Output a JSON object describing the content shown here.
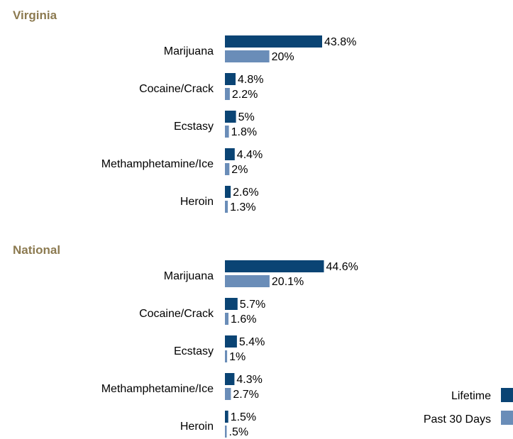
{
  "colors": {
    "lifetime": "#0a4474",
    "past30": "#6a8db8",
    "title": "#8c7a50"
  },
  "legend": {
    "lifetime": "Lifetime",
    "past30": "Past 30 Days"
  },
  "chart_data": [
    {
      "type": "bar",
      "orientation": "horizontal",
      "title": "Virginia",
      "categories": [
        "Marijuana",
        "Cocaine/Crack",
        "Ecstasy",
        "Methamphetamine/Ice",
        "Heroin"
      ],
      "series": [
        {
          "name": "Lifetime",
          "values": [
            43.8,
            4.8,
            5,
            4.4,
            2.6
          ],
          "labels": [
            "43.8%",
            "4.8%",
            "5%",
            "4.4%",
            "2.6%"
          ]
        },
        {
          "name": "Past 30 Days",
          "values": [
            20,
            2.2,
            1.8,
            2,
            1.3
          ],
          "labels": [
            "20%",
            "2.2%",
            "1.8%",
            "2%",
            "1.3%"
          ]
        }
      ]
    },
    {
      "type": "bar",
      "orientation": "horizontal",
      "title": "National",
      "categories": [
        "Marijuana",
        "Cocaine/Crack",
        "Ecstasy",
        "Methamphetamine/Ice",
        "Heroin"
      ],
      "series": [
        {
          "name": "Lifetime",
          "values": [
            44.6,
            5.7,
            5.4,
            4.3,
            1.5
          ],
          "labels": [
            "44.6%",
            "5.7%",
            "5.4%",
            "4.3%",
            "1.5%"
          ]
        },
        {
          "name": "Past 30 Days",
          "values": [
            20.1,
            1.6,
            1,
            2.7,
            0.5
          ],
          "labels": [
            "20.1%",
            "1.6%",
            "1%",
            "2.7%",
            ".5%"
          ]
        }
      ]
    }
  ]
}
